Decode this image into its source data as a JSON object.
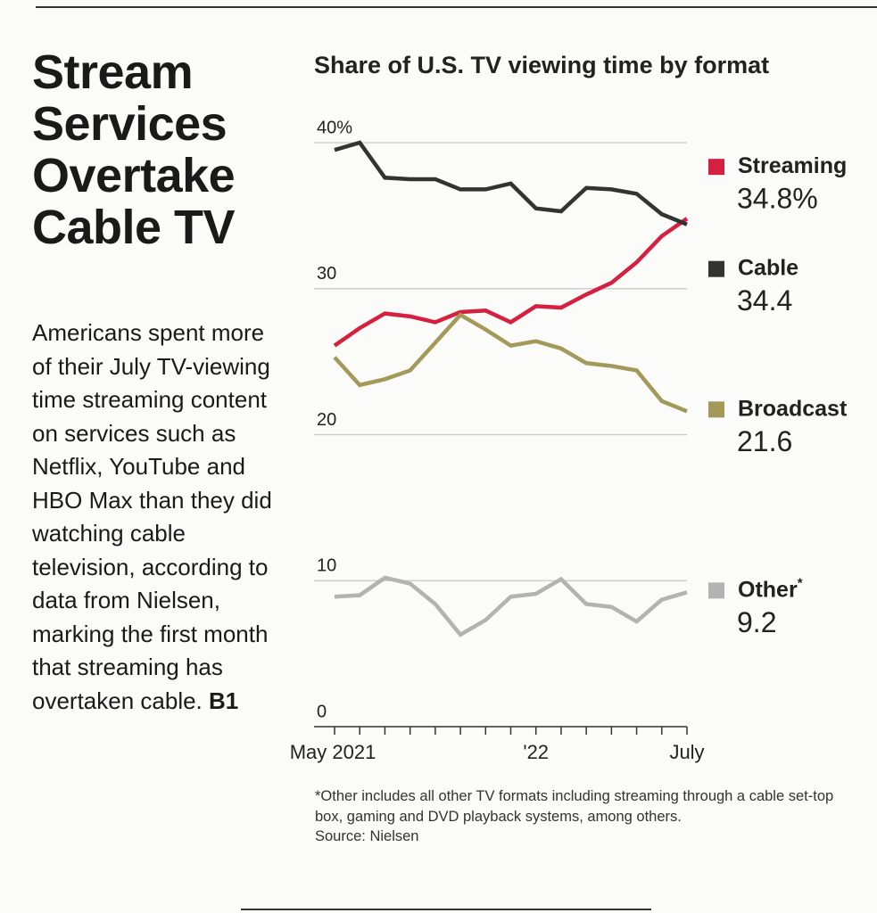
{
  "headline": "Stream Services Overtake Cable TV",
  "body": "Americans spent more of their July TV-viewing time streaming content on services such as Netflix, YouTube and HBO Max than they did watching cable television, according to data from Nielsen, marking the first month that streaming has overtaken cable.",
  "page_ref": "B1",
  "chart_data": {
    "type": "line",
    "title": "Share of U.S. TV viewing time by format",
    "categories": [
      "May 2021",
      null,
      null,
      null,
      null,
      null,
      null,
      null,
      "'22",
      null,
      null,
      null,
      null,
      null,
      "July"
    ],
    "ylim": [
      0,
      40
    ],
    "yticks": [
      0,
      10,
      20,
      30,
      {
        "value": 40,
        "label": "40%"
      }
    ],
    "grid": true,
    "series": [
      {
        "name": "Streaming",
        "color": "#d6203f",
        "values": [
          26.1,
          27.3,
          28.3,
          28.1,
          27.7,
          28.4,
          28.5,
          27.7,
          28.8,
          28.7,
          29.6,
          30.4,
          31.8,
          33.6,
          34.8
        ],
        "value_labels": [
          null,
          null,
          null,
          null,
          null,
          null,
          null,
          null,
          null,
          null,
          null,
          null,
          null,
          null,
          "34.8%"
        ]
      },
      {
        "name": "Cable",
        "color": "#333333",
        "values": [
          39.5,
          40.0,
          37.6,
          37.5,
          37.5,
          36.8,
          36.8,
          37.2,
          35.5,
          35.3,
          36.9,
          36.8,
          36.5,
          35.1,
          34.4
        ]
      },
      {
        "name": "Broadcast",
        "color": "#a39a5a",
        "values": [
          25.3,
          23.4,
          23.8,
          24.4,
          26.3,
          28.2,
          27.2,
          26.1,
          26.4,
          25.9,
          24.9,
          24.7,
          24.4,
          22.3,
          21.6
        ]
      },
      {
        "name": "Other",
        "note_mark": "*",
        "color": "#b3b3b3",
        "values": [
          8.9,
          9.0,
          10.2,
          9.8,
          8.4,
          6.3,
          7.3,
          8.9,
          9.1,
          10.1,
          8.4,
          8.2,
          7.2,
          8.7,
          9.2
        ]
      }
    ],
    "footnote": "*Other includes all other TV formats including streaming through a cable set-top box, gaming and DVD playback systems, among others.",
    "source": "Source: Nielsen"
  }
}
